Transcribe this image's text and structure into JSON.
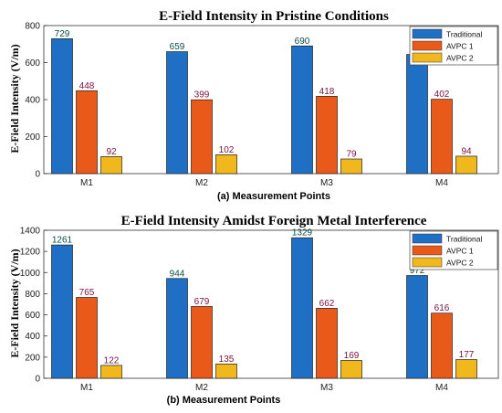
{
  "chart_data": [
    {
      "type": "bar",
      "title": "E-Field Intensity in Pristine Conditions",
      "xlabel": "(a)  Measurement Points",
      "ylabel": "E-Field Intensity (V/m)",
      "categories": [
        "M1",
        "M2",
        "M3",
        "M4"
      ],
      "ylim": [
        0,
        800
      ],
      "yticks": [
        0,
        200,
        400,
        600,
        800
      ],
      "legend_position": "top-right",
      "series": [
        {
          "name": "Traditional",
          "color": "#1f6fc4",
          "label_color": "#0b4d45",
          "values": [
            729,
            659,
            690,
            644
          ]
        },
        {
          "name": "AVPC 1",
          "color": "#e8591a",
          "label_color": "#7a1040",
          "values": [
            448,
            399,
            418,
            402
          ]
        },
        {
          "name": "AVPC 2",
          "color": "#f0b81c",
          "label_color": "#7a1040",
          "values": [
            92,
            102,
            79,
            94
          ]
        }
      ]
    },
    {
      "type": "bar",
      "title": "E-Field Intensity Amidst Foreign Metal Interference",
      "xlabel": "(b)  Measurement Points",
      "ylabel": "E-Field Intensity (V/m)",
      "categories": [
        "M1",
        "M2",
        "M3",
        "M4"
      ],
      "ylim": [
        0,
        1400
      ],
      "yticks": [
        0,
        200,
        400,
        600,
        800,
        1000,
        1200,
        1400
      ],
      "legend_position": "top-right",
      "series": [
        {
          "name": "Traditional",
          "color": "#1f6fc4",
          "label_color": "#0b4d45",
          "values": [
            1261,
            944,
            1329,
            972
          ]
        },
        {
          "name": "AVPC 1",
          "color": "#e8591a",
          "label_color": "#7a1040",
          "values": [
            765,
            679,
            662,
            616
          ]
        },
        {
          "name": "AVPC 2",
          "color": "#f0b81c",
          "label_color": "#7a1040",
          "values": [
            122,
            135,
            169,
            177
          ]
        }
      ]
    }
  ]
}
